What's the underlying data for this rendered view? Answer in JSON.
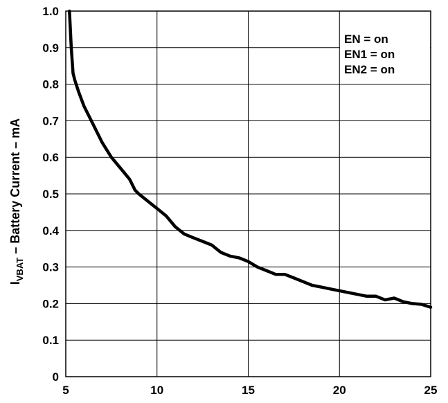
{
  "chart_data": {
    "type": "line",
    "title": "",
    "xlabel": "",
    "ylabel_main": "I",
    "ylabel_sub": "VBAT",
    "ylabel_rest": " – Battery Current  – mA",
    "xlim": [
      5,
      25
    ],
    "ylim": [
      0,
      1.0
    ],
    "x_ticks": [
      "5",
      "10",
      "15",
      "20",
      "25"
    ],
    "y_ticks": [
      "0",
      "0.1",
      "0.2",
      "0.3",
      "0.4",
      "0.5",
      "0.6",
      "0.7",
      "0.8",
      "0.9",
      "1.0"
    ],
    "grid": true,
    "legend_position": "top-right",
    "annotations": [
      "EN = on",
      "EN1 = on",
      "EN2 = on"
    ],
    "series": [
      {
        "color": "#000000",
        "x": [
          5.2,
          5.25,
          5.3,
          5.4,
          5.5,
          5.7,
          6.0,
          6.4,
          6.8,
          7.0,
          7.5,
          8.0,
          8.5,
          8.8,
          9.0,
          9.5,
          10.0,
          10.5,
          11.0,
          11.5,
          12.0,
          12.5,
          13.0,
          13.5,
          14.0,
          14.5,
          15.0,
          15.5,
          16.0,
          16.5,
          17.0,
          17.5,
          18.0,
          18.5,
          19.0,
          19.5,
          20.0,
          20.5,
          21.0,
          21.5,
          22.0,
          22.5,
          23.0,
          23.5,
          24.0,
          24.5,
          25.0
        ],
        "y": [
          1.0,
          0.95,
          0.9,
          0.83,
          0.81,
          0.78,
          0.74,
          0.7,
          0.66,
          0.64,
          0.6,
          0.57,
          0.54,
          0.51,
          0.5,
          0.48,
          0.46,
          0.44,
          0.41,
          0.39,
          0.38,
          0.37,
          0.36,
          0.34,
          0.33,
          0.325,
          0.315,
          0.3,
          0.29,
          0.28,
          0.28,
          0.27,
          0.26,
          0.25,
          0.245,
          0.24,
          0.235,
          0.23,
          0.225,
          0.22,
          0.22,
          0.21,
          0.215,
          0.205,
          0.2,
          0.198,
          0.19
        ]
      }
    ]
  }
}
